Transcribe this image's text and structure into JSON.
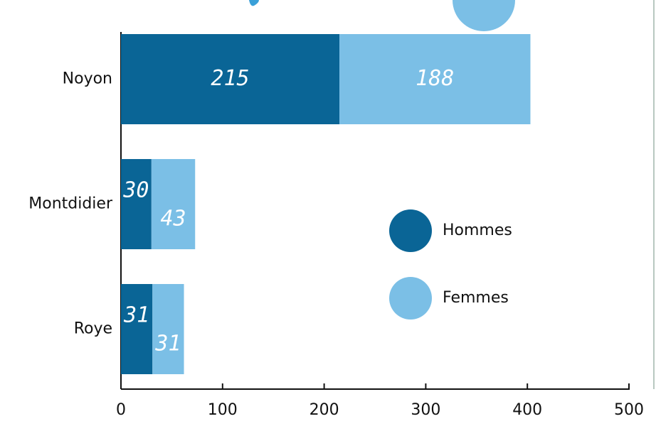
{
  "chart_data": {
    "type": "bar",
    "orientation": "horizontal",
    "stacked": true,
    "categories": [
      "Noyon",
      "Montdidier",
      "Roye"
    ],
    "series": [
      {
        "name": "Hommes",
        "color": "#0a6596",
        "values": [
          215,
          30,
          31
        ]
      },
      {
        "name": "Femmes",
        "color": "#7bbfe6",
        "values": [
          188,
          43,
          31
        ]
      }
    ],
    "xlim": [
      0,
      500
    ],
    "xticks": [
      0,
      100,
      200,
      300,
      400,
      500
    ]
  }
}
